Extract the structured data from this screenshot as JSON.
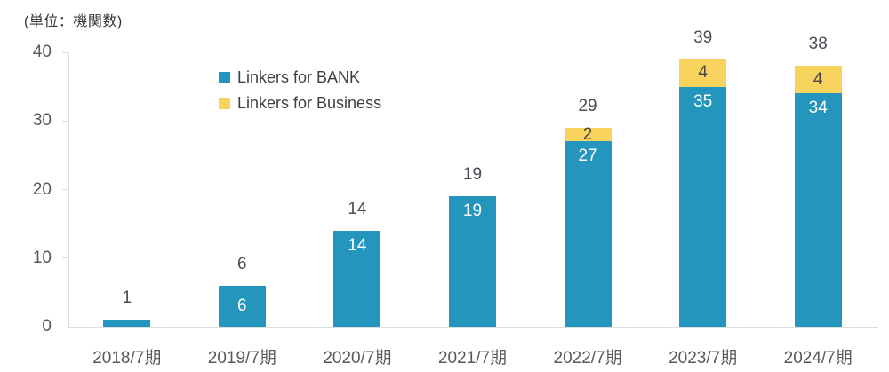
{
  "unit_label": "(単位：機関数)",
  "chart_data": {
    "type": "bar",
    "stacked": true,
    "title": "",
    "xlabel": "",
    "ylabel": "",
    "unit": "(単位：機関数)",
    "categories": [
      "2018/7期",
      "2019/7期",
      "2020/7期",
      "2021/7期",
      "2022/7期",
      "2023/7期",
      "2024/7期"
    ],
    "series": [
      {
        "name": "Linkers for BANK",
        "values": [
          1,
          6,
          14,
          19,
          27,
          35,
          34
        ],
        "color": "#2496BD",
        "label_color": "#FFFFFF"
      },
      {
        "name": "Linkers for Business",
        "values": [
          0,
          0,
          0,
          0,
          2,
          4,
          4
        ],
        "color": "#F8D45F",
        "label_color": "#474747"
      }
    ],
    "totals": [
      1,
      6,
      14,
      19,
      29,
      39,
      38
    ],
    "ylim": [
      0,
      40
    ],
    "yticks": [
      0,
      10,
      20,
      30,
      40
    ],
    "grid": false,
    "legend_position": "inside-top-left",
    "legend_entries": [
      "Linkers for BANK",
      "Linkers for Business"
    ]
  },
  "styles": {
    "bank_color": "#2496BD",
    "business_color": "#F8D45F",
    "axis_line_color": "#DCDCDC",
    "axis_text_color": "#595959",
    "total_label_color": "#474C55",
    "legend_text_color": "#404040",
    "unit_label_color": "#333333",
    "background": "#FFFFFF"
  }
}
